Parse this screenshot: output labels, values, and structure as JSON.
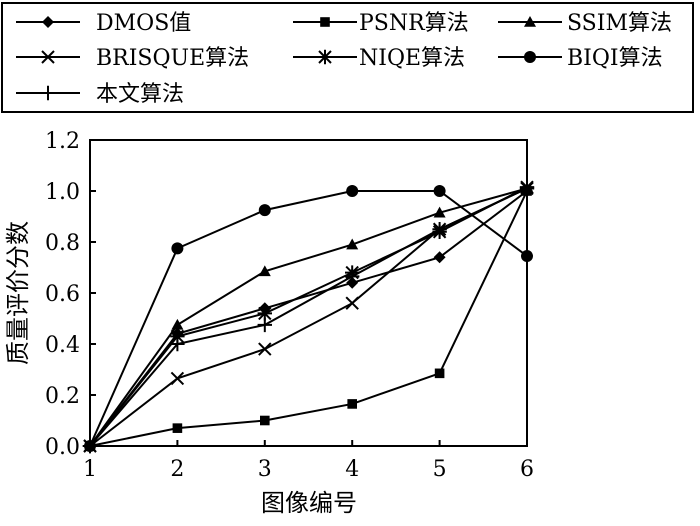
{
  "chart_data": {
    "type": "line",
    "title": "",
    "xlabel": "图像编号",
    "ylabel": "质量评价分数",
    "x": [
      1,
      2,
      3,
      4,
      5,
      6
    ],
    "xlim": [
      1,
      6
    ],
    "ylim": [
      0,
      1.2
    ],
    "xticks": [
      "1",
      "2",
      "3",
      "4",
      "5",
      "6"
    ],
    "yticks": [
      "0.0",
      "0.2",
      "0.4",
      "0.6",
      "0.8",
      "1.0",
      "1.2"
    ],
    "grid": false,
    "legend_position": "top",
    "series": [
      {
        "name": "DMOS值",
        "marker": "diamond",
        "values": [
          0.0,
          0.44,
          0.54,
          0.64,
          0.74,
          1.0
        ]
      },
      {
        "name": "PSNR算法",
        "marker": "square",
        "values": [
          0.0,
          0.07,
          0.1,
          0.165,
          0.285,
          1.0
        ]
      },
      {
        "name": "SSIM算法",
        "marker": "triangle",
        "values": [
          0.0,
          0.475,
          0.685,
          0.79,
          0.915,
          1.01
        ]
      },
      {
        "name": "BRISQUE算法",
        "marker": "x",
        "values": [
          0.0,
          0.265,
          0.38,
          0.56,
          0.85,
          1.01
        ]
      },
      {
        "name": "NIQE算法",
        "marker": "asterisk",
        "values": [
          0.0,
          0.43,
          0.52,
          0.68,
          0.84,
          1.015
        ]
      },
      {
        "name": "BIQI算法",
        "marker": "circle",
        "values": [
          0.0,
          0.775,
          0.925,
          1.0,
          1.0,
          0.745
        ]
      },
      {
        "name": "本文算法",
        "marker": "plus",
        "values": [
          0.0,
          0.4,
          0.475,
          0.665,
          0.85,
          1.01
        ]
      }
    ]
  }
}
